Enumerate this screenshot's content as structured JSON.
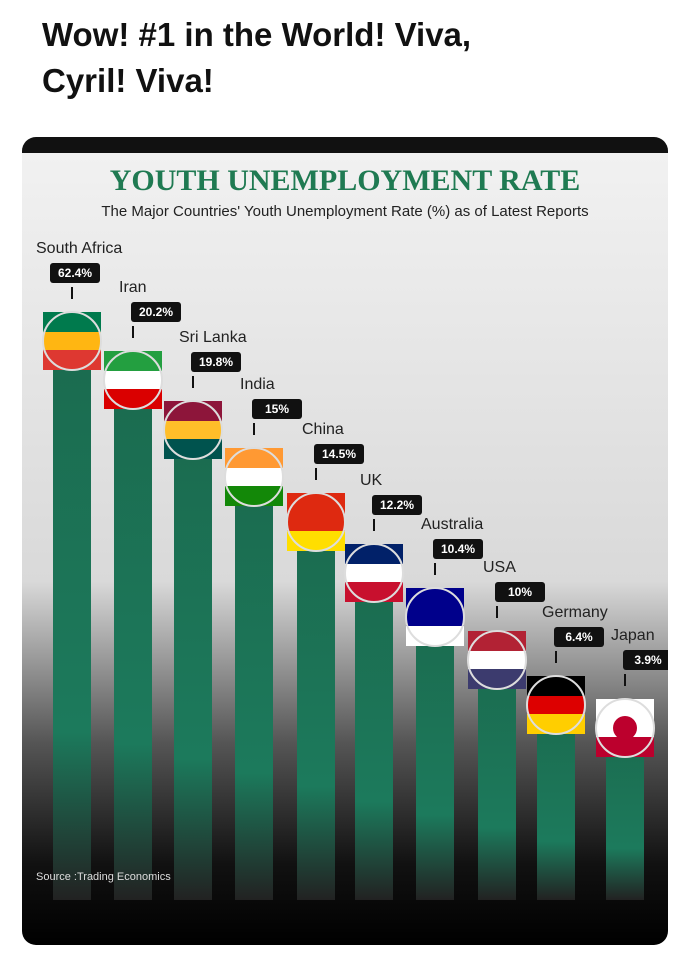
{
  "post": {
    "text_lines": [
      "Wow! #1 in the World! Viva,",
      "Cyril! Viva!"
    ]
  },
  "infographic": {
    "title": "YOUTH UNEMPLOYMENT RATE",
    "subtitle": "The Major Countries' Youth Unemployment Rate (%) as of Latest Reports",
    "items": [
      {
        "country": "South Africa",
        "rate": "62.4%"
      },
      {
        "country": "Iran",
        "rate": "20.2%"
      },
      {
        "country": "Sri Lanka",
        "rate": "19.8%"
      },
      {
        "country": "India",
        "rate": "15%"
      },
      {
        "country": "China",
        "rate": "14.5%"
      },
      {
        "country": "UK",
        "rate": "12.2%"
      },
      {
        "country": "Australia",
        "rate": "10.4%"
      },
      {
        "country": "USA",
        "rate": "10%"
      },
      {
        "country": "Germany",
        "rate": "6.4%"
      },
      {
        "country": "Japan",
        "rate": "3.9%"
      }
    ],
    "source": "Source :Trading Economics"
  }
}
